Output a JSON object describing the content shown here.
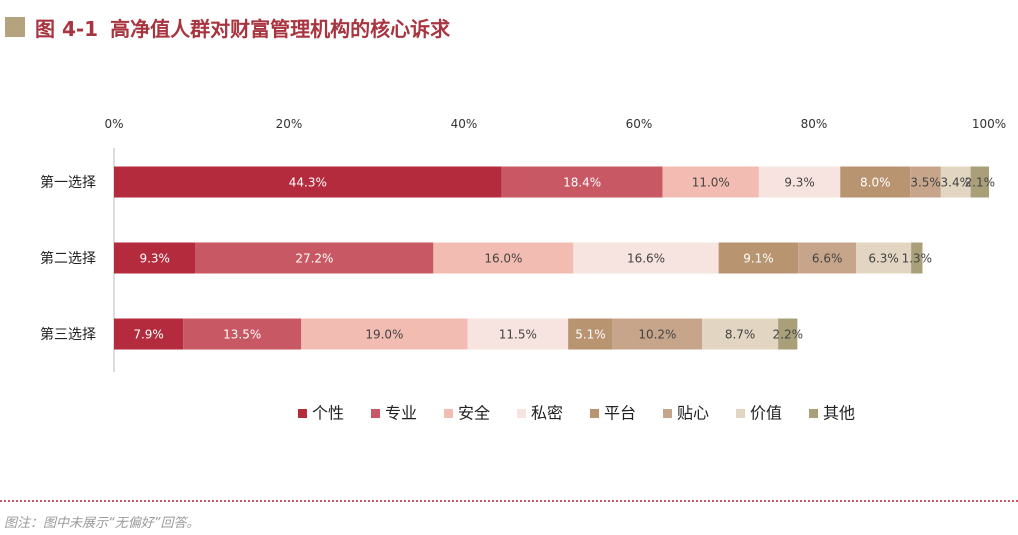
{
  "page": {
    "figure_label": "图 4-1",
    "title": "高净值人群对财富管理机构的核心诉求",
    "note": "图注：图中未展示“无偏好”回答。"
  },
  "chart_data": {
    "type": "stacked-bar-horizontal",
    "title": "高净值人群对财富管理机构的核心诉求",
    "xlim": [
      0,
      100
    ],
    "xticks": [
      "0%",
      "20%",
      "40%",
      "60%",
      "80%",
      "100%"
    ],
    "xtick_values": [
      0,
      20,
      40,
      60,
      80,
      100
    ],
    "categories": [
      "第一选择",
      "第二选择",
      "第三选择"
    ],
    "series": [
      {
        "name": "个性",
        "color": "#b32b3d",
        "label_color": "#ffffff",
        "values": [
          44.3,
          9.3,
          7.9
        ],
        "labels": [
          "44.3%",
          "9.3%",
          "7.9%"
        ]
      },
      {
        "name": "专业",
        "color": "#c85864",
        "label_color": "#ffffff",
        "values": [
          18.4,
          27.2,
          13.5
        ],
        "labels": [
          "18.4%",
          "27.2%",
          "13.5%"
        ]
      },
      {
        "name": "安全",
        "color": "#f3bcb3",
        "label_color": "#444444",
        "values": [
          11.0,
          16.0,
          19.0
        ],
        "labels": [
          "11.0%",
          "16.0%",
          "19.0%"
        ]
      },
      {
        "name": "私密",
        "color": "#f7e4e0",
        "label_color": "#444444",
        "values": [
          9.3,
          16.6,
          11.5
        ],
        "labels": [
          "9.3%",
          "16.6%",
          "11.5%"
        ]
      },
      {
        "name": "平台",
        "color": "#b99470",
        "label_color": "#ffffff",
        "values": [
          8.0,
          9.1,
          5.1
        ],
        "labels": [
          "8.0%",
          "9.1%",
          "5.1%"
        ]
      },
      {
        "name": "贴心",
        "color": "#c7a58b",
        "label_color": "#444444",
        "values": [
          3.5,
          6.6,
          10.2
        ],
        "labels": [
          "3.5%",
          "6.6%",
          "10.2%"
        ]
      },
      {
        "name": "价值",
        "color": "#e2d5c2",
        "label_color": "#444444",
        "values": [
          3.4,
          6.3,
          8.7
        ],
        "labels": [
          "3.4%",
          "6.3%",
          "8.7%"
        ]
      },
      {
        "name": "其他",
        "color": "#a9a07a",
        "label_color": "#444444",
        "values": [
          2.1,
          1.3,
          2.2
        ],
        "labels": [
          "2.1%",
          "1.3%",
          "2.2%"
        ]
      }
    ],
    "legend_position": "bottom",
    "grid": false
  }
}
